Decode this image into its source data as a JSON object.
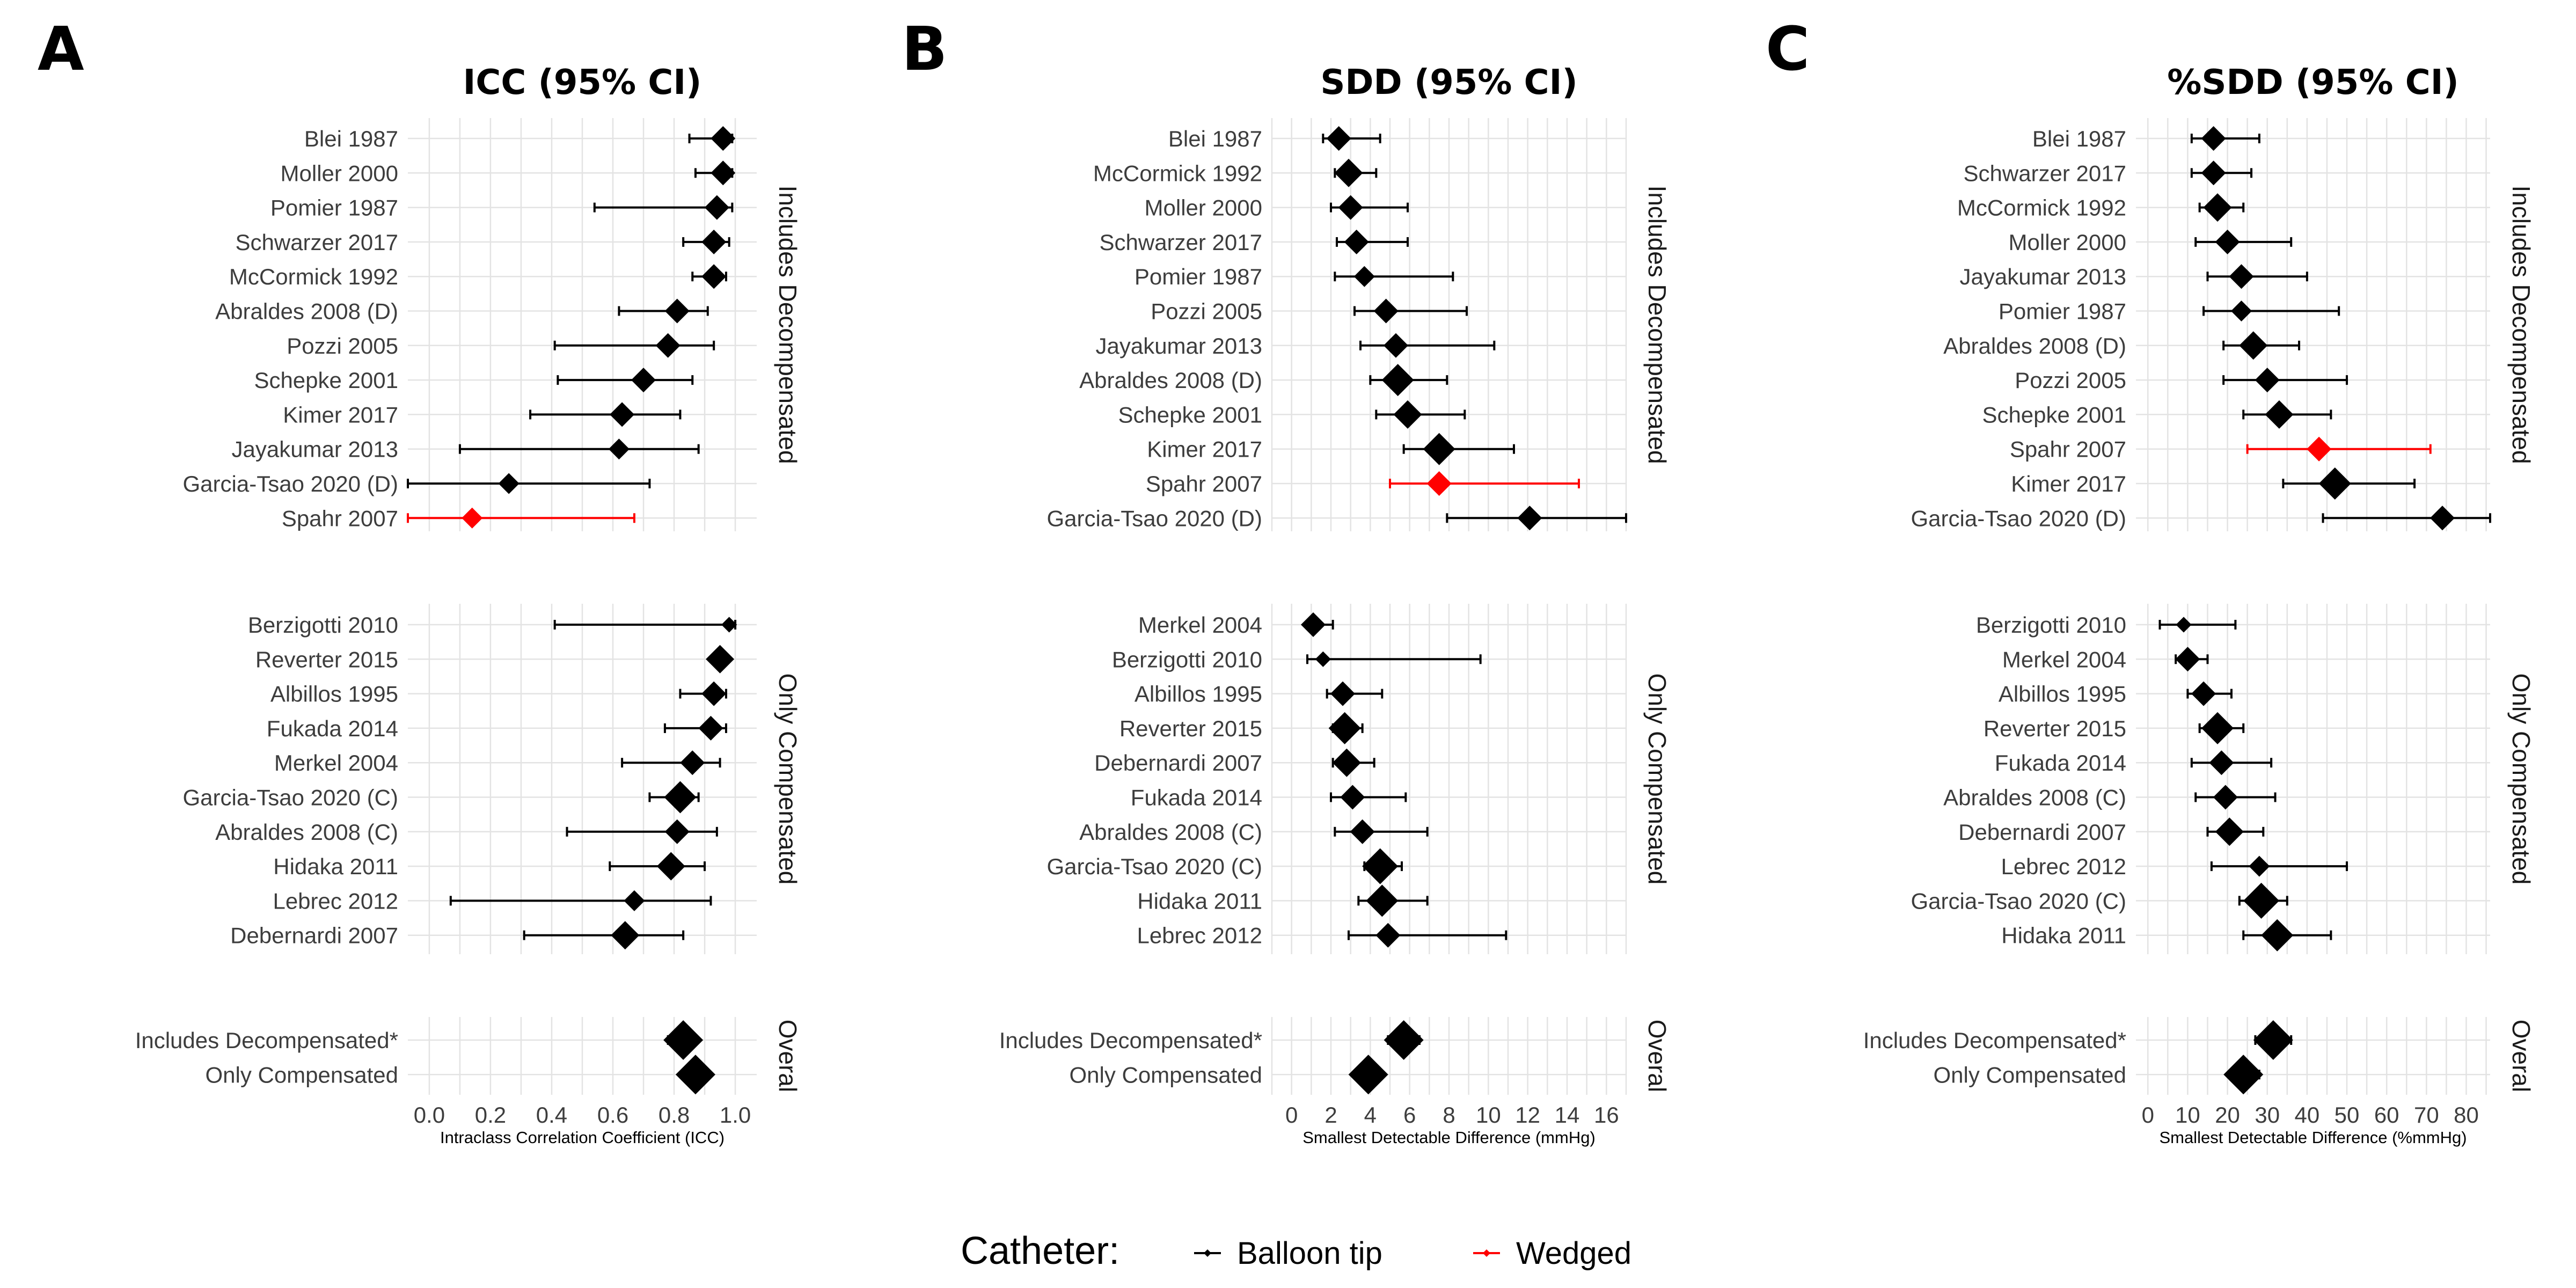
{
  "legend": {
    "title": "Catheter:",
    "items": [
      {
        "label": "Balloon tip",
        "color": "#000000"
      },
      {
        "label": "Wedged",
        "color": "#ff0000"
      }
    ]
  },
  "colors": {
    "Balloon tip": "#000000",
    "Wedged": "#ff0000",
    "grid": "#e3e3e3"
  },
  "chart_data": [
    {
      "type": "forest",
      "letter": "A",
      "title": "ICC (95% CI)",
      "xlabel": "Intraclass Correlation Coefficient (ICC)",
      "xlim": [
        -0.07,
        1.07
      ],
      "xticks": [
        0.0,
        0.2,
        0.4,
        0.6,
        0.8,
        1.0
      ],
      "tick_labels": [
        "0.0",
        "0.2",
        "0.4",
        "0.6",
        "0.8",
        "1.0"
      ],
      "grid": true,
      "facets": [
        {
          "strip": "Includes Decompensated",
          "rows": [
            {
              "label": "Blei 1987",
              "est": 0.96,
              "lo": 0.85,
              "hi": 0.99,
              "catheter": "Balloon tip",
              "n": 2
            },
            {
              "label": "Moller 2000",
              "est": 0.96,
              "lo": 0.87,
              "hi": 0.99,
              "catheter": "Balloon tip",
              "n": 2
            },
            {
              "label": "Pomier 1987",
              "est": 0.94,
              "lo": 0.54,
              "hi": 0.99,
              "catheter": "Balloon tip",
              "n": 2
            },
            {
              "label": "Schwarzer 2017",
              "est": 0.93,
              "lo": 0.83,
              "hi": 0.98,
              "catheter": "Balloon tip",
              "n": 2
            },
            {
              "label": "McCormick 1992",
              "est": 0.93,
              "lo": 0.86,
              "hi": 0.97,
              "catheter": "Balloon tip",
              "n": 2
            },
            {
              "label": "Abraldes 2008 (D)",
              "est": 0.81,
              "lo": 0.62,
              "hi": 0.91,
              "catheter": "Balloon tip",
              "n": 2
            },
            {
              "label": "Pozzi 2005",
              "est": 0.78,
              "lo": 0.41,
              "hi": 0.93,
              "catheter": "Balloon tip",
              "n": 2
            },
            {
              "label": "Schepke 2001",
              "est": 0.7,
              "lo": 0.42,
              "hi": 0.86,
              "catheter": "Balloon tip",
              "n": 2
            },
            {
              "label": "Kimer 2017",
              "est": 0.63,
              "lo": 0.33,
              "hi": 0.82,
              "catheter": "Balloon tip",
              "n": 2
            },
            {
              "label": "Jayakumar 2013",
              "est": 0.62,
              "lo": 0.1,
              "hi": 0.88,
              "catheter": "Balloon tip",
              "n": 1.5
            },
            {
              "label": "Garcia-Tsao 2020 (D)",
              "est": 0.26,
              "lo": -0.07,
              "hi": 0.72,
              "catheter": "Balloon tip",
              "n": 1.5
            },
            {
              "label": "Spahr 2007",
              "est": 0.14,
              "lo": -0.07,
              "hi": 0.67,
              "catheter": "Wedged",
              "n": 1.5
            }
          ]
        },
        {
          "strip": "Only Compensated",
          "rows": [
            {
              "label": "Berzigotti 2010",
              "est": 0.98,
              "lo": 0.41,
              "hi": 1.0,
              "catheter": "Balloon tip",
              "n": 0.8
            },
            {
              "label": "Reverter 2015",
              "est": 0.95,
              "lo": 0.93,
              "hi": 0.97,
              "catheter": "Balloon tip",
              "n": 2.5
            },
            {
              "label": "Albillos 1995",
              "est": 0.93,
              "lo": 0.82,
              "hi": 0.97,
              "catheter": "Balloon tip",
              "n": 2
            },
            {
              "label": "Fukada 2014",
              "est": 0.92,
              "lo": 0.77,
              "hi": 0.97,
              "catheter": "Balloon tip",
              "n": 2
            },
            {
              "label": "Merkel 2004",
              "est": 0.86,
              "lo": 0.63,
              "hi": 0.95,
              "catheter": "Balloon tip",
              "n": 2
            },
            {
              "label": "Garcia-Tsao 2020 (C)",
              "est": 0.82,
              "lo": 0.72,
              "hi": 0.88,
              "catheter": "Balloon tip",
              "n": 3
            },
            {
              "label": "Abraldes 2008 (C)",
              "est": 0.81,
              "lo": 0.45,
              "hi": 0.94,
              "catheter": "Balloon tip",
              "n": 2
            },
            {
              "label": "Hidaka 2011",
              "est": 0.79,
              "lo": 0.59,
              "hi": 0.9,
              "catheter": "Balloon tip",
              "n": 2.5
            },
            {
              "label": "Lebrec 2012",
              "est": 0.67,
              "lo": 0.07,
              "hi": 0.92,
              "catheter": "Balloon tip",
              "n": 1.5
            },
            {
              "label": "Debernardi 2007",
              "est": 0.64,
              "lo": 0.31,
              "hi": 0.83,
              "catheter": "Balloon tip",
              "n": 2.5
            }
          ]
        },
        {
          "strip": "Overal",
          "rows": [
            {
              "label": "Includes Decompensated*",
              "est": 0.83,
              "lo": 0.78,
              "hi": 0.87,
              "catheter": "Balloon tip",
              "n": 4
            },
            {
              "label": "Only Compensated",
              "est": 0.87,
              "lo": 0.84,
              "hi": 0.9,
              "catheter": "Balloon tip",
              "n": 4
            }
          ]
        }
      ]
    },
    {
      "type": "forest",
      "letter": "B",
      "title": "SDD (95% CI)",
      "xlabel": "Smallest Detectable Difference (mmHg)",
      "xlim": [
        -1,
        17
      ],
      "xticks": [
        0,
        2,
        4,
        6,
        8,
        10,
        12,
        14,
        16
      ],
      "tick_labels": [
        "0",
        "2",
        "4",
        "6",
        "8",
        "10",
        "12",
        "14",
        "16"
      ],
      "grid": true,
      "facets": [
        {
          "strip": "Includes Decompensated",
          "rows": [
            {
              "label": "Blei 1987",
              "est": 2.4,
              "lo": 1.6,
              "hi": 4.5,
              "catheter": "Balloon tip",
              "n": 2
            },
            {
              "label": "McCormick 1992",
              "est": 2.9,
              "lo": 2.2,
              "hi": 4.3,
              "catheter": "Balloon tip",
              "n": 2.5
            },
            {
              "label": "Moller 2000",
              "est": 3.0,
              "lo": 2.0,
              "hi": 5.9,
              "catheter": "Balloon tip",
              "n": 2
            },
            {
              "label": "Schwarzer 2017",
              "est": 3.3,
              "lo": 2.3,
              "hi": 5.9,
              "catheter": "Balloon tip",
              "n": 2
            },
            {
              "label": "Pomier 1987",
              "est": 3.7,
              "lo": 2.2,
              "hi": 8.2,
              "catheter": "Balloon tip",
              "n": 1.5
            },
            {
              "label": "Pozzi 2005",
              "est": 4.8,
              "lo": 3.2,
              "hi": 8.9,
              "catheter": "Balloon tip",
              "n": 2
            },
            {
              "label": "Jayakumar 2013",
              "est": 5.3,
              "lo": 3.5,
              "hi": 10.3,
              "catheter": "Balloon tip",
              "n": 2
            },
            {
              "label": "Abraldes 2008 (D)",
              "est": 5.4,
              "lo": 4.0,
              "hi": 7.9,
              "catheter": "Balloon tip",
              "n": 3
            },
            {
              "label": "Schepke 2001",
              "est": 5.9,
              "lo": 4.3,
              "hi": 8.8,
              "catheter": "Balloon tip",
              "n": 2.5
            },
            {
              "label": "Kimer 2017",
              "est": 7.5,
              "lo": 5.7,
              "hi": 11.3,
              "catheter": "Balloon tip",
              "n": 3
            },
            {
              "label": "Spahr 2007",
              "est": 7.5,
              "lo": 5.0,
              "hi": 14.6,
              "catheter": "Wedged",
              "n": 2
            },
            {
              "label": "Garcia-Tsao 2020 (D)",
              "est": 12.1,
              "lo": 7.9,
              "hi": 17.0,
              "catheter": "Balloon tip",
              "n": 2
            }
          ]
        },
        {
          "strip": "Only Compensated",
          "rows": [
            {
              "label": "Merkel 2004",
              "est": 1.1,
              "lo": 0.8,
              "hi": 2.1,
              "catheter": "Balloon tip",
              "n": 2
            },
            {
              "label": "Berzigotti 2010",
              "est": 1.6,
              "lo": 0.8,
              "hi": 9.6,
              "catheter": "Balloon tip",
              "n": 0.8
            },
            {
              "label": "Albillos 1995",
              "est": 2.6,
              "lo": 1.8,
              "hi": 4.6,
              "catheter": "Balloon tip",
              "n": 2
            },
            {
              "label": "Reverter 2015",
              "est": 2.7,
              "lo": 2.1,
              "hi": 3.6,
              "catheter": "Balloon tip",
              "n": 3
            },
            {
              "label": "Debernardi 2007",
              "est": 2.8,
              "lo": 2.1,
              "hi": 4.2,
              "catheter": "Balloon tip",
              "n": 2.5
            },
            {
              "label": "Fukada 2014",
              "est": 3.1,
              "lo": 2.0,
              "hi": 5.8,
              "catheter": "Balloon tip",
              "n": 2
            },
            {
              "label": "Abraldes 2008 (C)",
              "est": 3.6,
              "lo": 2.2,
              "hi": 6.9,
              "catheter": "Balloon tip",
              "n": 2
            },
            {
              "label": "Garcia-Tsao 2020 (C)",
              "est": 4.5,
              "lo": 3.7,
              "hi": 5.6,
              "catheter": "Balloon tip",
              "n": 3.5
            },
            {
              "label": "Hidaka 2011",
              "est": 4.6,
              "lo": 3.4,
              "hi": 6.9,
              "catheter": "Balloon tip",
              "n": 3
            },
            {
              "label": "Lebrec 2012",
              "est": 4.9,
              "lo": 2.9,
              "hi": 10.9,
              "catheter": "Balloon tip",
              "n": 2
            }
          ]
        },
        {
          "strip": "Overal",
          "rows": [
            {
              "label": "Includes Decompensated*",
              "est": 5.7,
              "lo": 4.9,
              "hi": 6.5,
              "catheter": "Balloon tip",
              "n": 4
            },
            {
              "label": "Only Compensated",
              "est": 3.9,
              "lo": 3.4,
              "hi": 4.3,
              "catheter": "Balloon tip",
              "n": 4
            }
          ]
        }
      ]
    },
    {
      "type": "forest",
      "letter": "C",
      "title": "%SDD (95% CI)",
      "xlabel": "Smallest Detectable Difference (%mmHg)",
      "xlim": [
        -3,
        86
      ],
      "xticks": [
        0,
        10,
        20,
        30,
        40,
        50,
        60,
        70,
        80
      ],
      "tick_labels": [
        "0",
        "10",
        "20",
        "30",
        "40",
        "50",
        "60",
        "70",
        "80"
      ],
      "grid": true,
      "facets": [
        {
          "strip": "Includes Decompensated",
          "rows": [
            {
              "label": "Blei 1987",
              "est": 16.5,
              "lo": 11,
              "hi": 28,
              "catheter": "Balloon tip",
              "n": 2
            },
            {
              "label": "Schwarzer 2017",
              "est": 16.5,
              "lo": 11,
              "hi": 26,
              "catheter": "Balloon tip",
              "n": 2
            },
            {
              "label": "McCormick 1992",
              "est": 17.5,
              "lo": 13,
              "hi": 24,
              "catheter": "Balloon tip",
              "n": 2.5
            },
            {
              "label": "Moller 2000",
              "est": 20,
              "lo": 12,
              "hi": 36,
              "catheter": "Balloon tip",
              "n": 2
            },
            {
              "label": "Jayakumar 2013",
              "est": 23.5,
              "lo": 15,
              "hi": 40,
              "catheter": "Balloon tip",
              "n": 2
            },
            {
              "label": "Pomier 1987",
              "est": 23.5,
              "lo": 14,
              "hi": 48,
              "catheter": "Balloon tip",
              "n": 1.5
            },
            {
              "label": "Abraldes 2008 (D)",
              "est": 26.5,
              "lo": 19,
              "hi": 38,
              "catheter": "Balloon tip",
              "n": 2.5
            },
            {
              "label": "Pozzi 2005",
              "est": 30,
              "lo": 19,
              "hi": 50,
              "catheter": "Balloon tip",
              "n": 2
            },
            {
              "label": "Schepke 2001",
              "est": 33,
              "lo": 24,
              "hi": 46,
              "catheter": "Balloon tip",
              "n": 2.5
            },
            {
              "label": "Spahr 2007",
              "est": 43,
              "lo": 25,
              "hi": 71,
              "catheter": "Wedged",
              "n": 2
            },
            {
              "label": "Kimer 2017",
              "est": 47,
              "lo": 34,
              "hi": 67,
              "catheter": "Balloon tip",
              "n": 3
            },
            {
              "label": "Garcia-Tsao 2020 (D)",
              "est": 74,
              "lo": 44,
              "hi": 86,
              "catheter": "Balloon tip",
              "n": 2
            }
          ]
        },
        {
          "strip": "Only Compensated",
          "rows": [
            {
              "label": "Berzigotti 2010",
              "est": 9,
              "lo": 3,
              "hi": 22,
              "catheter": "Balloon tip",
              "n": 0.8
            },
            {
              "label": "Merkel 2004",
              "est": 10,
              "lo": 7,
              "hi": 15,
              "catheter": "Balloon tip",
              "n": 2
            },
            {
              "label": "Albillos 1995",
              "est": 14,
              "lo": 10,
              "hi": 21,
              "catheter": "Balloon tip",
              "n": 2
            },
            {
              "label": "Reverter 2015",
              "est": 17.5,
              "lo": 13,
              "hi": 24,
              "catheter": "Balloon tip",
              "n": 3
            },
            {
              "label": "Fukada 2014",
              "est": 18.5,
              "lo": 11,
              "hi": 31,
              "catheter": "Balloon tip",
              "n": 2
            },
            {
              "label": "Abraldes 2008 (C)",
              "est": 19.5,
              "lo": 12,
              "hi": 32,
              "catheter": "Balloon tip",
              "n": 2
            },
            {
              "label": "Debernardi 2007",
              "est": 20.5,
              "lo": 15,
              "hi": 29,
              "catheter": "Balloon tip",
              "n": 2.5
            },
            {
              "label": "Lebrec 2012",
              "est": 28,
              "lo": 16,
              "hi": 50,
              "catheter": "Balloon tip",
              "n": 1.5
            },
            {
              "label": "Garcia-Tsao 2020 (C)",
              "est": 28.5,
              "lo": 23,
              "hi": 35,
              "catheter": "Balloon tip",
              "n": 3.5
            },
            {
              "label": "Hidaka 2011",
              "est": 32.5,
              "lo": 24,
              "hi": 46,
              "catheter": "Balloon tip",
              "n": 3
            }
          ]
        },
        {
          "strip": "Overal",
          "rows": [
            {
              "label": "Includes Decompensated*",
              "est": 31.5,
              "lo": 27,
              "hi": 36,
              "catheter": "Balloon tip",
              "n": 4
            },
            {
              "label": "Only Compensated",
              "est": 24,
              "lo": 21,
              "hi": 28,
              "catheter": "Balloon tip",
              "n": 4
            }
          ]
        }
      ]
    }
  ]
}
